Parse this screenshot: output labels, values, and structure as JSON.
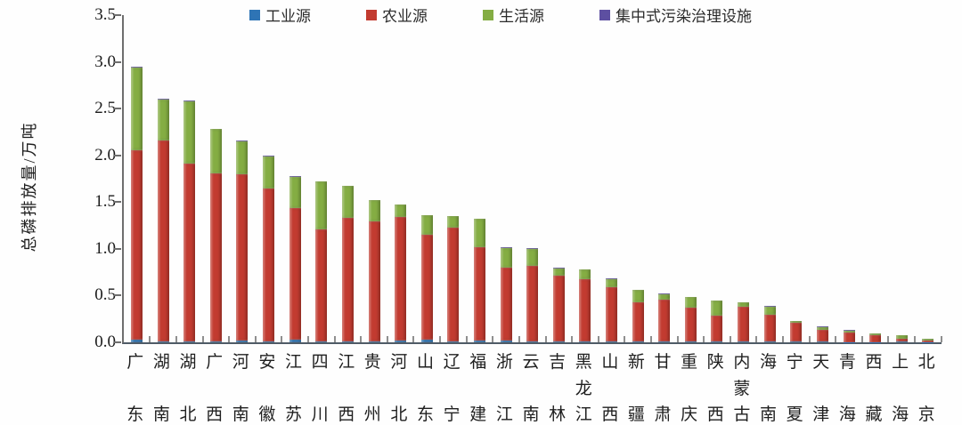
{
  "legend": [
    {
      "key": "industrial",
      "label": "工业源",
      "color": "#2E74B5"
    },
    {
      "key": "agricultural",
      "label": "农业源",
      "color": "#C23B30"
    },
    {
      "key": "domestic",
      "label": "生活源",
      "color": "#84AD43"
    },
    {
      "key": "centralized",
      "label": "集中式污染治理设施",
      "color": "#5D4FA1"
    }
  ],
  "y_axis": {
    "title": "总磷排放量/万吨",
    "tick_labels": [
      "3.5",
      "3.0",
      "2.5",
      "2.0",
      "1.5",
      "1.0",
      "0.5",
      "0.0"
    ]
  },
  "chart_data": {
    "type": "bar",
    "stacked": true,
    "title": "",
    "xlabel": "",
    "ylabel": "总磷排放量/万吨",
    "ylim": [
      0,
      3.5
    ],
    "ytick_step": 0.5,
    "grid": false,
    "legend_position": "top",
    "categories": [
      "广东",
      "湖南",
      "湖北",
      "广西",
      "河南",
      "安徽",
      "江苏",
      "四川",
      "江西",
      "贵州",
      "河北",
      "山东",
      "辽宁",
      "福建",
      "浙江",
      "云南",
      "吉林",
      "黑龙江",
      "山西",
      "新疆",
      "甘肃",
      "重庆",
      "陕西",
      "内蒙古",
      "海南",
      "宁夏",
      "天津",
      "青海",
      "西藏",
      "上海",
      "北京"
    ],
    "series": [
      {
        "name": "工业源",
        "color": "#2E74B5",
        "values": [
          0.03,
          0.01,
          0.01,
          0.01,
          0.02,
          0.01,
          0.03,
          0.01,
          0.01,
          0.01,
          0.02,
          0.03,
          0.01,
          0.02,
          0.02,
          0.01,
          0.01,
          0.01,
          0.01,
          0.01,
          0.005,
          0.005,
          0.005,
          0.005,
          0.005,
          0.005,
          0.005,
          0.003,
          0.001,
          0.005,
          0.003
        ]
      },
      {
        "name": "农业源",
        "color": "#C23B30",
        "values": [
          2.02,
          2.15,
          1.9,
          1.8,
          1.78,
          1.64,
          1.41,
          1.2,
          1.32,
          1.28,
          1.32,
          1.12,
          1.22,
          1.0,
          0.78,
          0.81,
          0.7,
          0.67,
          0.58,
          0.42,
          0.45,
          0.37,
          0.28,
          0.38,
          0.29,
          0.2,
          0.13,
          0.1,
          0.072,
          0.03,
          0.015
        ]
      },
      {
        "name": "生活源",
        "color": "#84AD43",
        "values": [
          0.89,
          0.44,
          0.67,
          0.47,
          0.35,
          0.34,
          0.33,
          0.51,
          0.34,
          0.23,
          0.13,
          0.21,
          0.12,
          0.3,
          0.21,
          0.18,
          0.08,
          0.1,
          0.09,
          0.13,
          0.06,
          0.11,
          0.16,
          0.04,
          0.09,
          0.025,
          0.03,
          0.025,
          0.022,
          0.04,
          0.02
        ]
      },
      {
        "name": "集中式污染治理设施",
        "color": "#5D4FA1",
        "values": [
          0.005,
          0.005,
          0.005,
          0.005,
          0.005,
          0.005,
          0.005,
          0.005,
          0.005,
          0.005,
          0.005,
          0.005,
          0.005,
          0.005,
          0.005,
          0.005,
          0.005,
          0.005,
          0.005,
          0.005,
          0.005,
          0.005,
          0.005,
          0.005,
          0.005,
          0.003,
          0.003,
          0.002,
          0.002,
          0.002,
          0.002
        ]
      }
    ]
  }
}
